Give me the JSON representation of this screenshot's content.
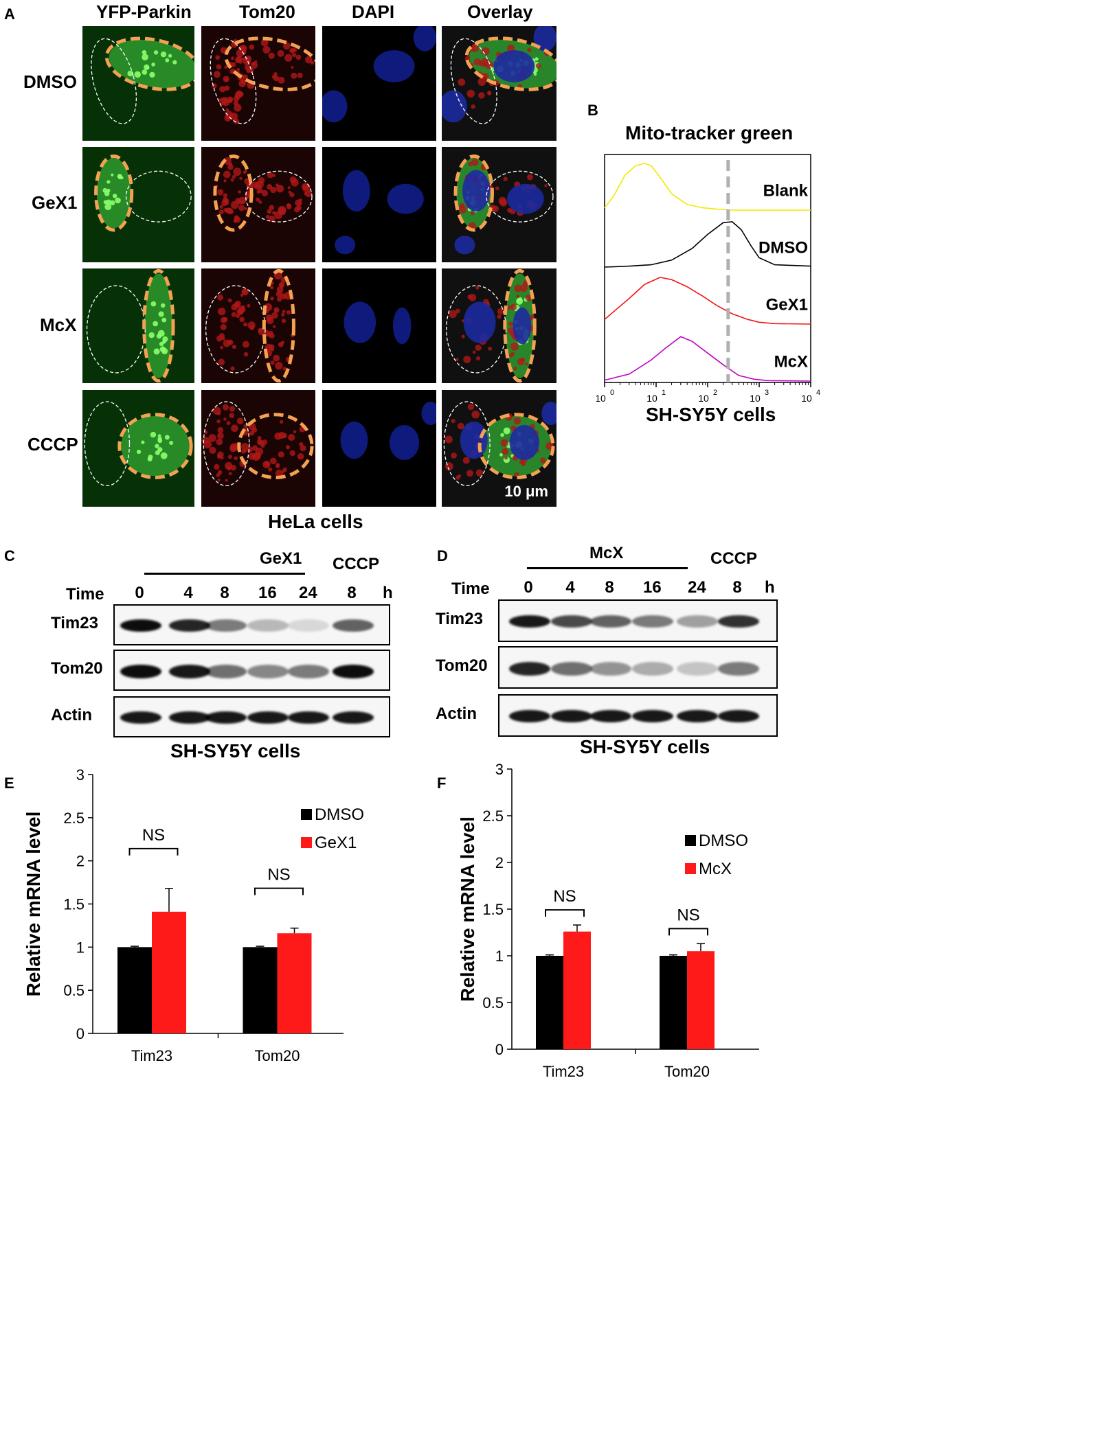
{
  "panelA": {
    "letter": "A",
    "columns": [
      "YFP-Parkin",
      "Tom20",
      "DAPI",
      "Overlay"
    ],
    "rows": [
      "DMSO",
      "GeX1",
      "McX",
      "CCCP"
    ],
    "scale_bar": "10 μm",
    "caption": "HeLa cells",
    "channel_colors": {
      "yfp": "#2e9a2e",
      "tom20": "#b01818",
      "dapi": "#0a1650",
      "outline_orange": "#f5a152"
    }
  },
  "panelB": {
    "letter": "B",
    "title": "Mito-tracker green",
    "caption": "SH-SY5Y cells",
    "tick_labels": [
      "10",
      "10",
      "10",
      "10",
      "10"
    ],
    "tick_exponents": [
      "0",
      "1",
      "2",
      "3",
      "4"
    ]
  },
  "panelC": {
    "letter": "C",
    "treatment": "GeX1",
    "control": "CCCP",
    "time_label": "Time",
    "times": [
      "0",
      "4",
      "8",
      "16",
      "24",
      "8"
    ],
    "unit": "h",
    "rows": [
      "Tim23",
      "Tom20",
      "Actin"
    ],
    "caption": "SH-SY5Y cells"
  },
  "panelD": {
    "letter": "D",
    "treatment": "McX",
    "control": "CCCP",
    "time_label": "Time",
    "times": [
      "0",
      "4",
      "8",
      "16",
      "24",
      "8"
    ],
    "unit": "h",
    "rows": [
      "Tim23",
      "Tom20",
      "Actin"
    ],
    "caption": "SH-SY5Y cells"
  },
  "panelE": {
    "letter": "E"
  },
  "panelF": {
    "letter": "F"
  },
  "chart_data": [
    {
      "type": "line",
      "panel": "B",
      "title": "Mito-tracker green",
      "xlabel": "",
      "xscale": "log",
      "xlim": [
        1,
        10000
      ],
      "stacked": true,
      "reference_line_x": 250,
      "series": [
        {
          "name": "Blank",
          "color": "#f0ea00",
          "x": [
            1,
            1.5,
            2.5,
            4,
            6,
            8,
            12,
            20,
            40,
            80,
            150,
            300,
            1000,
            10000
          ],
          "y": [
            0.05,
            0.3,
            0.75,
            0.95,
            1.0,
            0.95,
            0.7,
            0.35,
            0.12,
            0.05,
            0.02,
            0.0,
            0.0,
            0.0
          ]
        },
        {
          "name": "DMSO",
          "color": "#000000",
          "x": [
            1,
            3,
            8,
            20,
            50,
            100,
            200,
            300,
            450,
            700,
            1000,
            2000,
            10000
          ],
          "y": [
            0.0,
            0.02,
            0.05,
            0.15,
            0.4,
            0.7,
            0.95,
            0.97,
            0.8,
            0.45,
            0.2,
            0.05,
            0.02
          ]
        },
        {
          "name": "GeX1",
          "color": "#f01414",
          "x": [
            1,
            3,
            6,
            12,
            20,
            40,
            80,
            150,
            300,
            600,
            1000,
            2000,
            10000
          ],
          "y": [
            0.1,
            0.55,
            0.85,
            1.0,
            0.95,
            0.8,
            0.6,
            0.4,
            0.22,
            0.1,
            0.04,
            0.01,
            0.0
          ]
        },
        {
          "name": "McX",
          "color": "#c000c0",
          "x": [
            1,
            3,
            8,
            15,
            30,
            50,
            100,
            200,
            400,
            800,
            1500,
            10000
          ],
          "y": [
            0.02,
            0.15,
            0.45,
            0.7,
            0.95,
            0.85,
            0.6,
            0.35,
            0.12,
            0.04,
            0.01,
            0.0
          ]
        }
      ]
    },
    {
      "type": "bar",
      "panel": "E",
      "categories": [
        "Tim23",
        "Tom20"
      ],
      "ylabel": "Relative mRNA  level",
      "ylim": [
        0,
        3
      ],
      "yticks": [
        "0",
        "0.5",
        "1",
        "1.5",
        "2",
        "2.5",
        "3"
      ],
      "series": [
        {
          "name": "DMSO",
          "color": "#000000",
          "values": [
            1.0,
            1.0
          ],
          "errors": [
            0.01,
            0.01
          ]
        },
        {
          "name": "GeX1",
          "color": "#ff1a1a",
          "values": [
            1.41,
            1.16
          ],
          "errors": [
            0.27,
            0.06
          ]
        }
      ],
      "annotations": [
        "NS",
        "NS"
      ],
      "legend": "top-right"
    },
    {
      "type": "bar",
      "panel": "F",
      "categories": [
        "Tim23",
        "Tom20"
      ],
      "ylabel": "Relative mRNA  level",
      "ylim": [
        0,
        3
      ],
      "yticks": [
        "0",
        "0.5",
        "1",
        "1.5",
        "2",
        "2.5",
        "3"
      ],
      "series": [
        {
          "name": "DMSO",
          "color": "#000000",
          "values": [
            1.0,
            1.0
          ],
          "errors": [
            0.01,
            0.01
          ]
        },
        {
          "name": "McX",
          "color": "#ff1a1a",
          "values": [
            1.26,
            1.05
          ],
          "errors": [
            0.07,
            0.08
          ]
        }
      ],
      "annotations": [
        "NS",
        "NS"
      ],
      "legend": "top-right"
    }
  ]
}
